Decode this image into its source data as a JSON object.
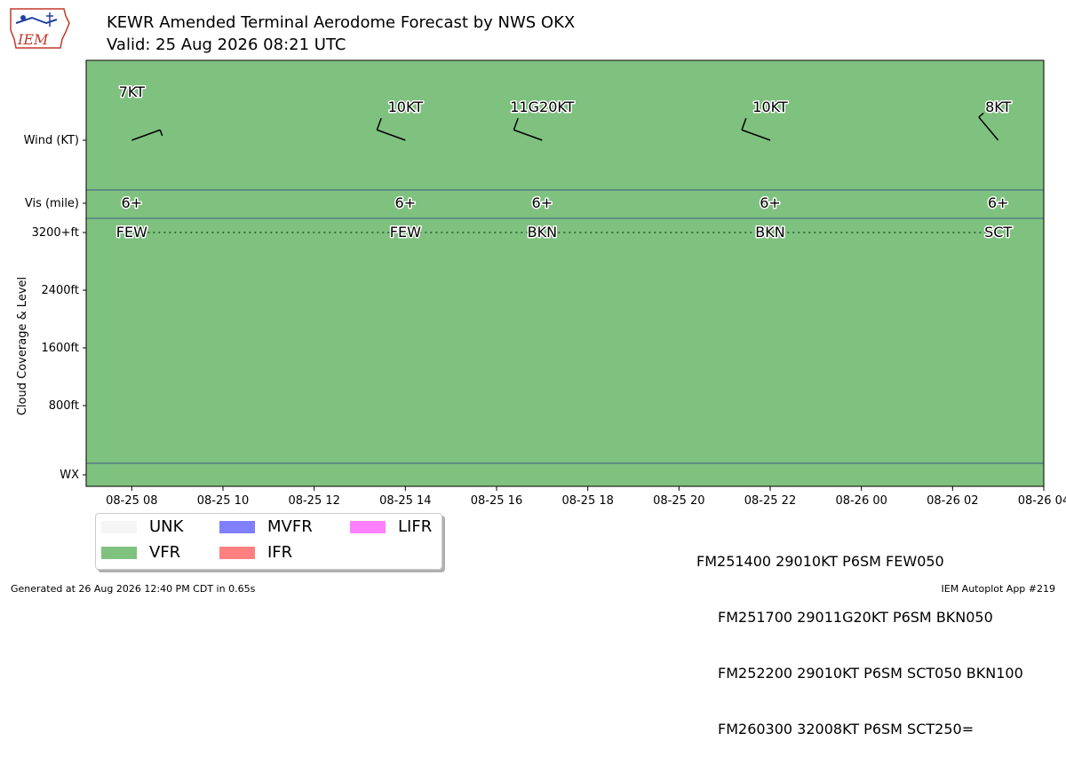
{
  "header": {
    "title_line1": "KEWR Amended Terminal Aerodome Forecast by NWS OKX",
    "title_line2": "Valid: 25 Aug 2026 08:21 UTC",
    "logo_text": "IEM"
  },
  "chart_data": {
    "type": "timeline",
    "background_category": "VFR",
    "x_ticks": [
      "08-25 08",
      "08-25 10",
      "08-25 12",
      "08-25 14",
      "08-25 16",
      "08-25 18",
      "08-25 20",
      "08-25 22",
      "08-26 00",
      "08-26 02",
      "08-26 04"
    ],
    "x_range_hours": [
      7.0,
      28.0
    ],
    "y_labels": {
      "wind": "Wind (KT)",
      "vis": "Vis (mile)",
      "cloud_ticks": [
        "3200+ft",
        "2400ft",
        "1600ft",
        "800ft"
      ],
      "wx": "WX",
      "cloud_axis_label": "Cloud Coverage & Level"
    },
    "forecasts": [
      {
        "hour": 8.0,
        "wind_label": "7KT",
        "wind_dir": 70,
        "wind_speed": 7,
        "vis": "6+",
        "cloud": "FEW"
      },
      {
        "hour": 14.0,
        "wind_label": "10KT",
        "wind_dir": 290,
        "wind_speed": 10,
        "vis": "6+",
        "cloud": "FEW"
      },
      {
        "hour": 17.0,
        "wind_label": "11G20KT",
        "wind_dir": 290,
        "wind_speed": 11,
        "vis": "6+",
        "cloud": "BKN"
      },
      {
        "hour": 22.0,
        "wind_label": "10KT",
        "wind_dir": 290,
        "wind_speed": 10,
        "vis": "6+",
        "cloud": "BKN"
      },
      {
        "hour": 27.0,
        "wind_label": "8KT",
        "wind_dir": 320,
        "wind_speed": 8,
        "vis": "6+",
        "cloud": "SCT"
      }
    ],
    "colors": {
      "VFR": "#7fc17f",
      "UNK": "#f5f5f5",
      "MVFR": "#8080ff",
      "IFR": "#ff8080",
      "LIFR": "#ff80ff"
    }
  },
  "legend": {
    "items": [
      {
        "label": "UNK",
        "color": "#f5f5f5"
      },
      {
        "label": "MVFR",
        "color": "#8080ff"
      },
      {
        "label": "LIFR",
        "color": "#ff80ff"
      },
      {
        "label": "VFR",
        "color": "#7fc17f"
      },
      {
        "label": "IFR",
        "color": "#ff8080"
      }
    ]
  },
  "taf_text": [
    "FM251400 29010KT P6SM FEW050",
    "FM251700 29011G20KT P6SM BKN050",
    "FM252200 29010KT P6SM SCT050 BKN100",
    "FM260300 32008KT P6SM SCT250="
  ],
  "footer": {
    "generated": "Generated at 26 Aug 2026 12:40 PM CDT in 0.65s",
    "app": "IEM Autoplot App #219"
  }
}
